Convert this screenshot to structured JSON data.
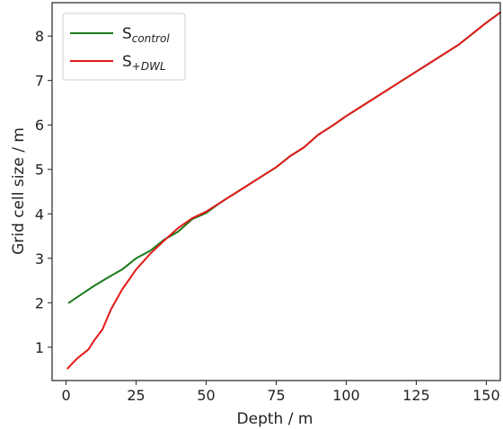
{
  "chart_data": {
    "type": "line",
    "title": "",
    "xlabel": "Depth / m",
    "ylabel": "Grid cell size / m",
    "xlim": [
      -5,
      155
    ],
    "ylim": [
      0.25,
      8.75
    ],
    "xticks": [
      0,
      25,
      50,
      75,
      100,
      125,
      150
    ],
    "yticks": [
      1,
      2,
      3,
      4,
      5,
      6,
      7,
      8
    ],
    "grid": false,
    "legend_position": "top-left",
    "series": [
      {
        "name": "S",
        "name_sub": "control",
        "color": "#1a7a1a",
        "x": [
          1,
          5,
          10,
          15,
          20,
          25,
          30,
          35,
          40,
          45,
          50,
          55,
          60,
          65,
          70,
          75,
          80,
          85,
          90,
          95,
          100,
          110,
          120,
          130,
          140,
          150,
          155
        ],
        "y": [
          2.0,
          2.17,
          2.38,
          2.57,
          2.75,
          3.0,
          3.17,
          3.42,
          3.6,
          3.88,
          4.02,
          4.25,
          4.45,
          4.65,
          4.85,
          5.05,
          5.3,
          5.5,
          5.78,
          5.98,
          6.2,
          6.6,
          7.0,
          7.4,
          7.8,
          8.3,
          8.53
        ]
      },
      {
        "name": "S",
        "name_sub": "+DWL",
        "color": "#e31a1a",
        "x": [
          0.5,
          2,
          4,
          6,
          8,
          10,
          13,
          16,
          20,
          25,
          30,
          35,
          40,
          45,
          50,
          55,
          60,
          65,
          70,
          75,
          80,
          85,
          90,
          95,
          100,
          110,
          120,
          130,
          140,
          150,
          155
        ],
        "y": [
          0.52,
          0.62,
          0.75,
          0.85,
          0.95,
          1.15,
          1.4,
          1.85,
          2.3,
          2.75,
          3.1,
          3.4,
          3.68,
          3.9,
          4.05,
          4.25,
          4.45,
          4.65,
          4.85,
          5.05,
          5.3,
          5.5,
          5.78,
          5.98,
          6.2,
          6.6,
          7.0,
          7.4,
          7.8,
          8.3,
          8.53
        ]
      }
    ]
  }
}
